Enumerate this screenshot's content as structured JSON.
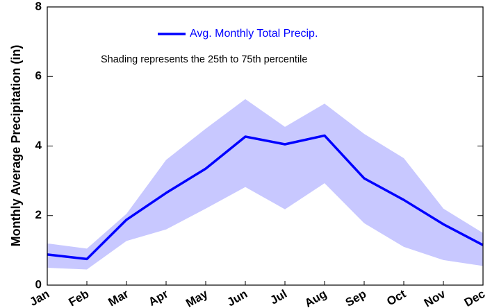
{
  "chart_data": {
    "type": "line",
    "y_label": "Monthly Average Precipitation (in)",
    "annotation": "Shading represents the 25th to 75th percentile",
    "categories": [
      "Jan",
      "Feb",
      "Mar",
      "Apr",
      "May",
      "Jun",
      "Jul",
      "Aug",
      "Sep",
      "Oct",
      "Nov",
      "Dec"
    ],
    "series": [
      {
        "name": "Avg. Monthly Total Precip.",
        "color": "#0000ff",
        "values": [
          0.88,
          0.75,
          1.88,
          2.65,
          3.35,
          4.27,
          4.05,
          4.3,
          3.07,
          2.45,
          1.75,
          1.15
        ]
      }
    ],
    "band": {
      "color": "#c8c8ff",
      "upper": [
        1.2,
        1.05,
        2.05,
        3.6,
        4.5,
        5.35,
        4.55,
        5.22,
        4.35,
        3.65,
        2.2,
        1.5
      ],
      "lower": [
        0.5,
        0.45,
        1.27,
        1.6,
        2.2,
        2.82,
        2.18,
        2.93,
        1.78,
        1.1,
        0.72,
        0.55
      ]
    },
    "ylim": [
      0,
      8
    ],
    "yticks": [
      0,
      2,
      4,
      6,
      8
    ]
  }
}
